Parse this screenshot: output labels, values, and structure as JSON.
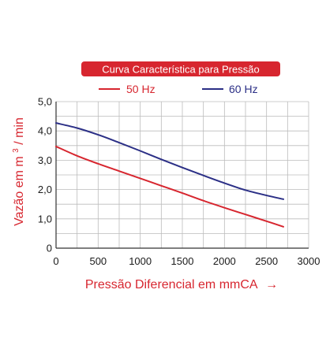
{
  "colors": {
    "red": "#d7262f",
    "blue": "#2b2f86",
    "title_bg": "#d7262f",
    "title_text": "#ffffff",
    "axis_text": "#1a1a1a",
    "label_text": "#d7262f",
    "grid": "#bcbcbc",
    "axis_line": "#333333"
  },
  "arrow_glyph": "→",
  "chart_data": {
    "type": "line",
    "title": "Curva Característica para Pressão",
    "xlabel": "Pressão Diferencial em mmCA",
    "ylabel_main": "Vazão em m",
    "ylabel_sup": "3",
    "ylabel_tail": " / min",
    "xlim": [
      0,
      3000
    ],
    "ylim": [
      0,
      5
    ],
    "x_ticks": [
      0,
      500,
      1000,
      1500,
      2000,
      2500,
      3000
    ],
    "x_tick_labels": [
      "0",
      "500",
      "1000",
      "1500",
      "2000",
      "2500",
      "3000"
    ],
    "y_ticks": [
      0,
      1,
      2,
      3,
      4,
      5
    ],
    "y_tick_labels": [
      "0",
      "1,0",
      "2,0",
      "3,0",
      "4,0",
      "5,0"
    ],
    "x_minor_step": 250,
    "y_minor_step": 0.5,
    "grid": true,
    "legend_position": "top",
    "series": [
      {
        "name": "50 Hz",
        "color": "#d7262f",
        "x": [
          0,
          250,
          500,
          750,
          1000,
          1250,
          1500,
          1750,
          2000,
          2250,
          2500,
          2700
        ],
        "y": [
          3.47,
          3.15,
          2.88,
          2.63,
          2.38,
          2.13,
          1.88,
          1.62,
          1.38,
          1.15,
          0.92,
          0.73
        ]
      },
      {
        "name": "60 Hz",
        "color": "#2b2f86",
        "x": [
          0,
          250,
          500,
          750,
          1000,
          1250,
          1500,
          1750,
          2000,
          2250,
          2500,
          2700
        ],
        "y": [
          4.27,
          4.1,
          3.87,
          3.6,
          3.32,
          3.03,
          2.75,
          2.48,
          2.22,
          1.98,
          1.8,
          1.67
        ]
      }
    ]
  }
}
